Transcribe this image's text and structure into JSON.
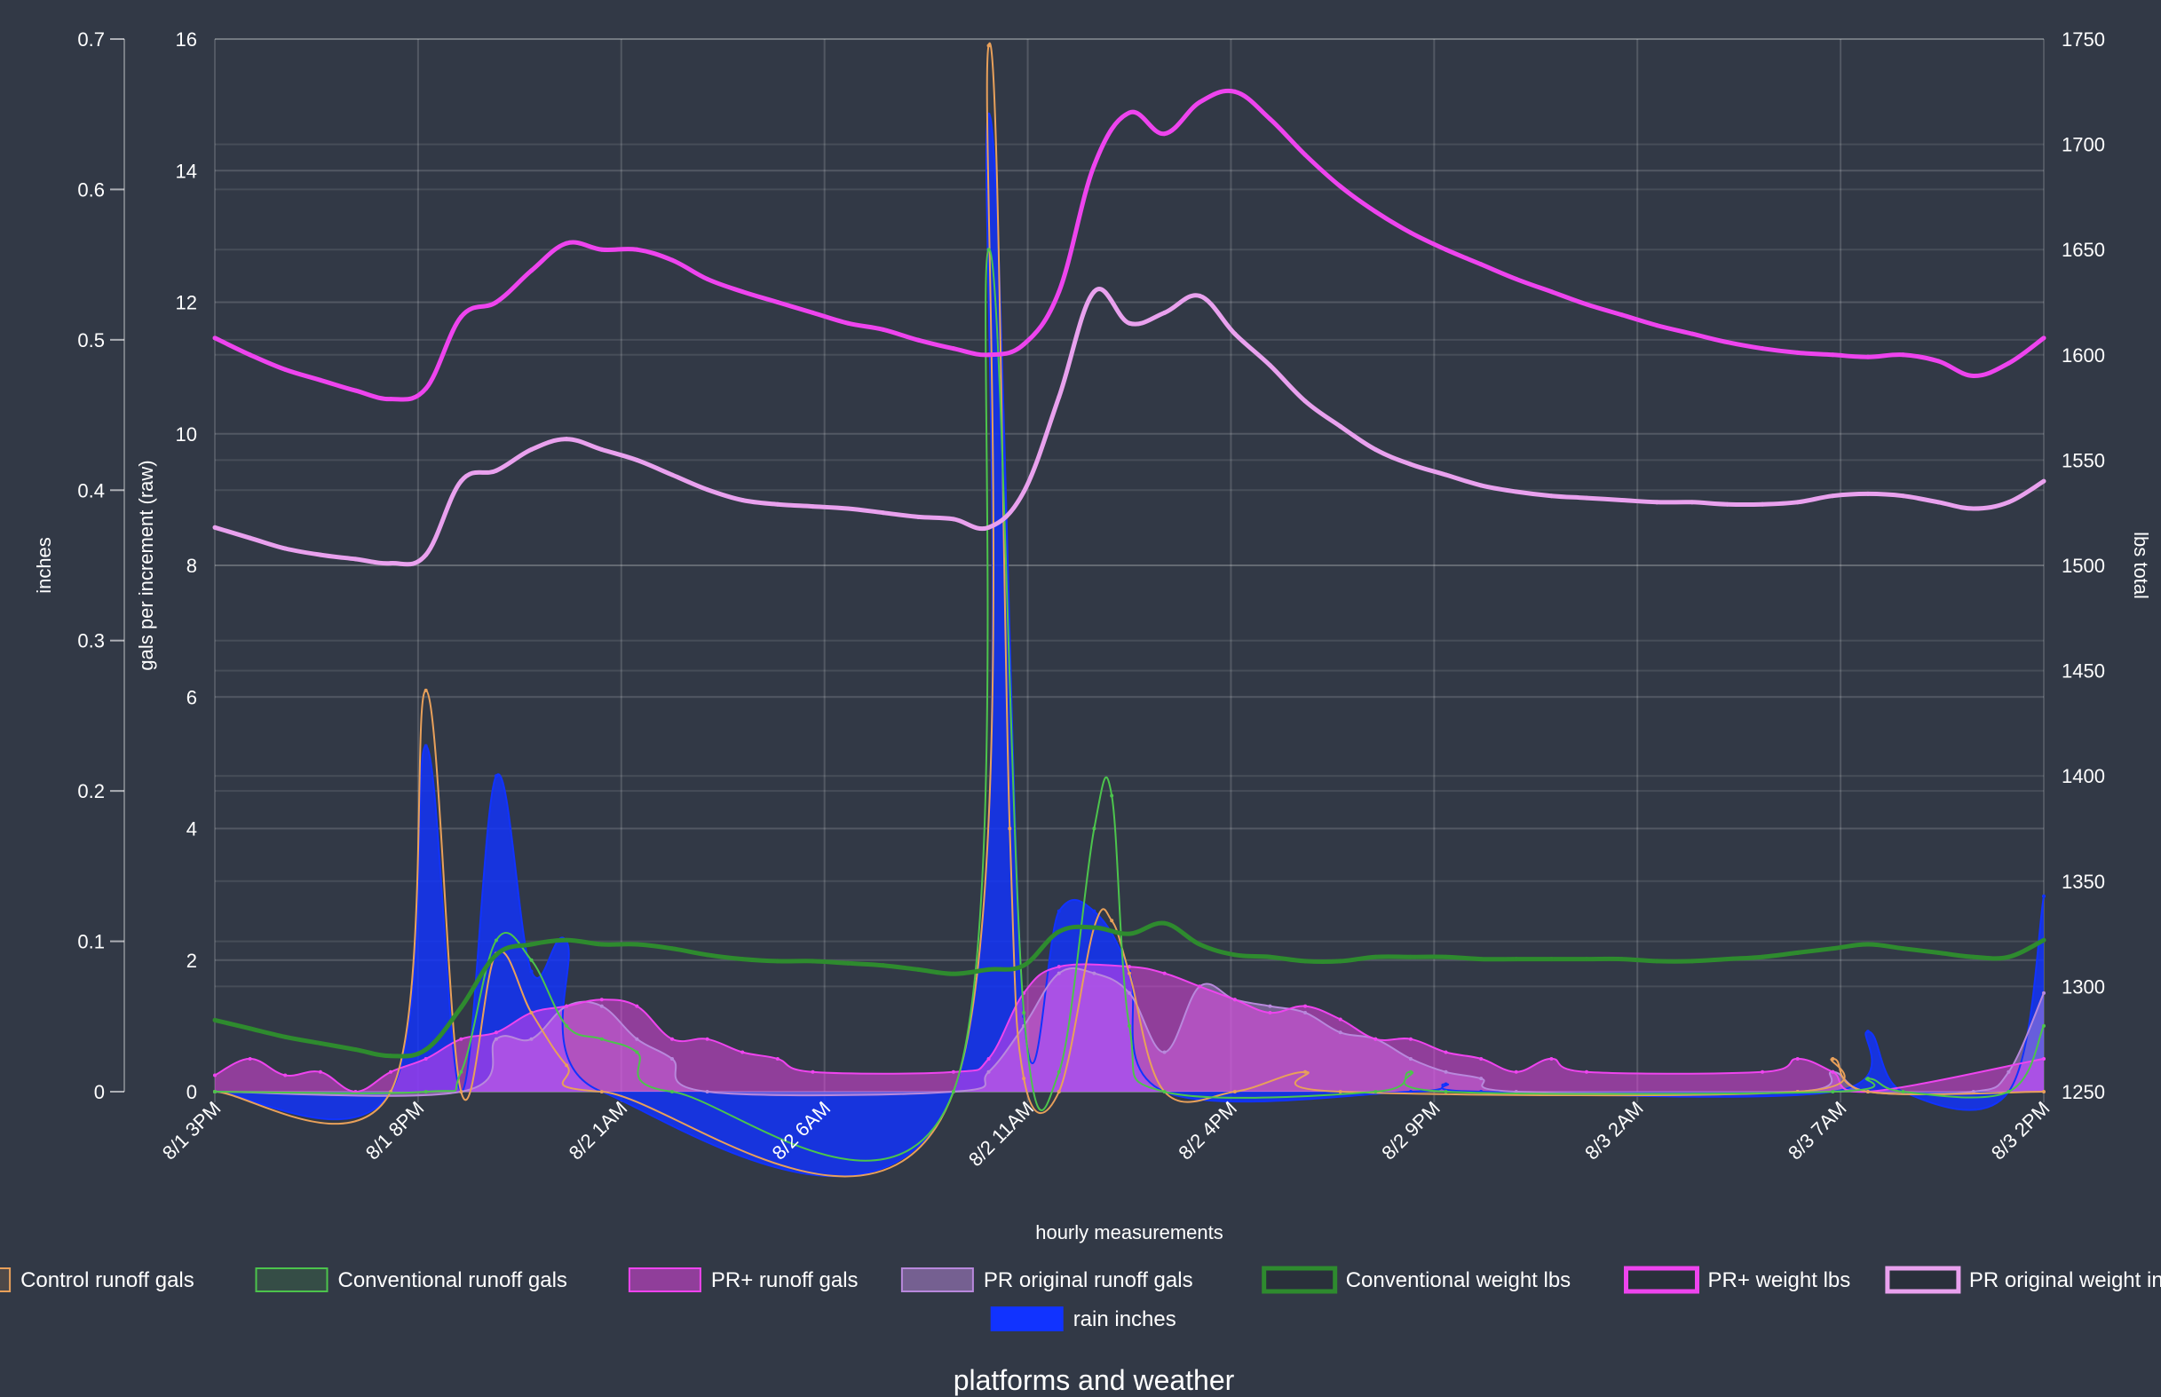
{
  "chart_data": {
    "type": "line",
    "title": "platforms and weather",
    "xlabel": "hourly measurements",
    "x_tick_labels": [
      "8/1 3PM",
      "8/1 8PM",
      "8/2 1AM",
      "8/2 6AM",
      "8/2 11AM",
      "8/2 4PM",
      "8/2 9PM",
      "8/3 2AM",
      "8/3 7AM",
      "8/3 2PM"
    ],
    "axes": {
      "inches": {
        "label": "inches",
        "ticks": [
          "0",
          "0.1",
          "0.2",
          "0.3",
          "0.4",
          "0.5",
          "0.6",
          "0.7"
        ],
        "range": [
          0,
          0.7
        ]
      },
      "gals": {
        "label": "gals per increment (raw)",
        "ticks": [
          "0",
          "2",
          "4",
          "6",
          "8",
          "10",
          "12",
          "14",
          "16"
        ],
        "range": [
          0,
          16
        ]
      },
      "lbs": {
        "label": "lbs total",
        "ticks": [
          "1250",
          "1300",
          "1350",
          "1400",
          "1450",
          "1500",
          "1550",
          "1600",
          "1650",
          "1700",
          "1750"
        ],
        "range": [
          1250,
          1750
        ]
      }
    },
    "grid": true,
    "legend_position": "bottom",
    "series": [
      {
        "name": "Control runoff gals",
        "axis": "gals",
        "fill": false,
        "color": "#e8a05a",
        "points": [
          [
            0,
            0
          ],
          [
            5,
            0
          ],
          [
            6,
            6.1
          ],
          [
            7,
            0
          ],
          [
            8,
            2.1
          ],
          [
            9,
            1.2
          ],
          [
            10,
            0.4
          ],
          [
            11,
            0
          ],
          [
            21,
            0
          ],
          [
            22,
            15.9
          ],
          [
            22.6,
            4
          ],
          [
            23,
            0.2
          ],
          [
            24,
            0
          ],
          [
            25,
            2.5
          ],
          [
            25.5,
            2.6
          ],
          [
            26,
            1.8
          ],
          [
            27,
            0
          ],
          [
            29,
            0
          ],
          [
            31,
            0.3
          ],
          [
            32,
            0
          ],
          [
            45,
            0
          ],
          [
            46,
            0.5
          ],
          [
            47,
            0
          ],
          [
            52,
            0
          ]
        ]
      },
      {
        "name": "Conventional runoff gals",
        "axis": "gals",
        "fill": false,
        "color": "#4cc44c",
        "points": [
          [
            0,
            0
          ],
          [
            6,
            0
          ],
          [
            7,
            0.3
          ],
          [
            8,
            2.3
          ],
          [
            9,
            2
          ],
          [
            10,
            1
          ],
          [
            11,
            0.8
          ],
          [
            12,
            0.6
          ],
          [
            13,
            0
          ],
          [
            21,
            0
          ],
          [
            22,
            12.8
          ],
          [
            23,
            1.2
          ],
          [
            24,
            0.3
          ],
          [
            25,
            4
          ],
          [
            25.5,
            4.5
          ],
          [
            26,
            1
          ],
          [
            27,
            0
          ],
          [
            33,
            0
          ],
          [
            34,
            0.3
          ],
          [
            35,
            0
          ],
          [
            46,
            0
          ],
          [
            47,
            0.2
          ],
          [
            48,
            0
          ],
          [
            51,
            0
          ],
          [
            52,
            1
          ]
        ]
      },
      {
        "name": "PR+ runoff gals",
        "axis": "gals",
        "fill": true,
        "color": "#ee44ee",
        "points": [
          [
            0,
            0.25
          ],
          [
            1,
            0.5
          ],
          [
            2,
            0.25
          ],
          [
            3,
            0.3
          ],
          [
            4,
            0
          ],
          [
            5,
            0.3
          ],
          [
            6,
            0.5
          ],
          [
            7,
            0.8
          ],
          [
            8,
            0.9
          ],
          [
            9,
            1.2
          ],
          [
            10,
            1.3
          ],
          [
            11,
            1.4
          ],
          [
            12,
            1.3
          ],
          [
            13,
            0.8
          ],
          [
            14,
            0.8
          ],
          [
            15,
            0.6
          ],
          [
            16,
            0.5
          ],
          [
            17,
            0.3
          ],
          [
            21,
            0.3
          ],
          [
            22,
            0.5
          ],
          [
            23,
            1.5
          ],
          [
            24,
            1.9
          ],
          [
            26,
            1.9
          ],
          [
            27,
            1.8
          ],
          [
            28,
            1.6
          ],
          [
            29,
            1.4
          ],
          [
            30,
            1.2
          ],
          [
            31,
            1.3
          ],
          [
            32,
            1.1
          ],
          [
            33,
            0.8
          ],
          [
            34,
            0.8
          ],
          [
            35,
            0.6
          ],
          [
            36,
            0.5
          ],
          [
            37,
            0.3
          ],
          [
            38,
            0.5
          ],
          [
            39,
            0.3
          ],
          [
            44,
            0.3
          ],
          [
            45,
            0.5
          ],
          [
            46,
            0.3
          ],
          [
            47,
            0
          ],
          [
            52,
            0.5
          ]
        ]
      },
      {
        "name": "PR original runoff gals",
        "axis": "gals",
        "fill": true,
        "color": "#b888dc",
        "points": [
          [
            0,
            0
          ],
          [
            7,
            0
          ],
          [
            8,
            0.8
          ],
          [
            9,
            0.8
          ],
          [
            10,
            1.3
          ],
          [
            11,
            1.3
          ],
          [
            12,
            0.8
          ],
          [
            13,
            0.5
          ],
          [
            14,
            0
          ],
          [
            21,
            0
          ],
          [
            22,
            0.3
          ],
          [
            23,
            1
          ],
          [
            24,
            1.8
          ],
          [
            25,
            1.8
          ],
          [
            26,
            1.5
          ],
          [
            27,
            0.6
          ],
          [
            28,
            1.6
          ],
          [
            29,
            1.4
          ],
          [
            30,
            1.3
          ],
          [
            31,
            1.2
          ],
          [
            32,
            0.9
          ],
          [
            33,
            0.8
          ],
          [
            34,
            0.5
          ],
          [
            35,
            0.3
          ],
          [
            36,
            0.2
          ],
          [
            37,
            0
          ],
          [
            45,
            0
          ],
          [
            46,
            0.3
          ],
          [
            47,
            0
          ],
          [
            50,
            0
          ],
          [
            51,
            0.3
          ],
          [
            52,
            1.5
          ]
        ]
      },
      {
        "name": "Conventional weight lbs",
        "axis": "lbs",
        "fill": false,
        "color": "#2e8b2e",
        "points": [
          [
            0,
            1284
          ],
          [
            1,
            1280
          ],
          [
            2,
            1276
          ],
          [
            3,
            1273
          ],
          [
            4,
            1270
          ],
          [
            5,
            1267
          ],
          [
            6,
            1270
          ],
          [
            7,
            1290
          ],
          [
            8,
            1315
          ],
          [
            9,
            1320
          ],
          [
            10,
            1322
          ],
          [
            11,
            1320
          ],
          [
            12,
            1320
          ],
          [
            13,
            1318
          ],
          [
            14,
            1315
          ],
          [
            15,
            1313
          ],
          [
            16,
            1312
          ],
          [
            17,
            1312
          ],
          [
            18,
            1311
          ],
          [
            19,
            1310
          ],
          [
            20,
            1308
          ],
          [
            21,
            1306
          ],
          [
            22,
            1308
          ],
          [
            23,
            1310
          ],
          [
            24,
            1326
          ],
          [
            25,
            1328
          ],
          [
            26,
            1325
          ],
          [
            27,
            1330
          ],
          [
            28,
            1320
          ],
          [
            29,
            1315
          ],
          [
            30,
            1314
          ],
          [
            31,
            1312
          ],
          [
            32,
            1312
          ],
          [
            33,
            1314
          ],
          [
            34,
            1314
          ],
          [
            35,
            1314
          ],
          [
            36,
            1313
          ],
          [
            37,
            1313
          ],
          [
            38,
            1313
          ],
          [
            39,
            1313
          ],
          [
            40,
            1313
          ],
          [
            41,
            1312
          ],
          [
            42,
            1312
          ],
          [
            43,
            1313
          ],
          [
            44,
            1314
          ],
          [
            45,
            1316
          ],
          [
            46,
            1318
          ],
          [
            47,
            1320
          ],
          [
            48,
            1318
          ],
          [
            49,
            1316
          ],
          [
            50,
            1314
          ],
          [
            51,
            1314
          ],
          [
            52,
            1322
          ]
        ]
      },
      {
        "name": "PR+ weight lbs",
        "axis": "lbs",
        "fill": false,
        "color": "#ee44ee",
        "points": [
          [
            0,
            1608
          ],
          [
            1,
            1600
          ],
          [
            2,
            1593
          ],
          [
            3,
            1588
          ],
          [
            4,
            1583
          ],
          [
            5,
            1579
          ],
          [
            6,
            1584
          ],
          [
            7,
            1618
          ],
          [
            8,
            1625
          ],
          [
            9,
            1640
          ],
          [
            10,
            1653
          ],
          [
            11,
            1650
          ],
          [
            12,
            1650
          ],
          [
            13,
            1645
          ],
          [
            14,
            1636
          ],
          [
            15,
            1630
          ],
          [
            16,
            1625
          ],
          [
            17,
            1620
          ],
          [
            18,
            1615
          ],
          [
            19,
            1612
          ],
          [
            20,
            1607
          ],
          [
            21,
            1603
          ],
          [
            22,
            1600
          ],
          [
            23,
            1605
          ],
          [
            24,
            1630
          ],
          [
            25,
            1690
          ],
          [
            26,
            1715
          ],
          [
            27,
            1705
          ],
          [
            28,
            1720
          ],
          [
            29,
            1725
          ],
          [
            30,
            1712
          ],
          [
            31,
            1695
          ],
          [
            32,
            1680
          ],
          [
            33,
            1668
          ],
          [
            34,
            1658
          ],
          [
            35,
            1650
          ],
          [
            36,
            1643
          ],
          [
            37,
            1636
          ],
          [
            38,
            1630
          ],
          [
            39,
            1624
          ],
          [
            40,
            1619
          ],
          [
            41,
            1614
          ],
          [
            42,
            1610
          ],
          [
            43,
            1606
          ],
          [
            44,
            1603
          ],
          [
            45,
            1601
          ],
          [
            46,
            1600
          ],
          [
            47,
            1599
          ],
          [
            48,
            1600
          ],
          [
            49,
            1597
          ],
          [
            50,
            1590
          ],
          [
            51,
            1596
          ],
          [
            52,
            1608
          ]
        ]
      },
      {
        "name": "PR original weight in lbs",
        "axis": "lbs",
        "fill": false,
        "color": "#e9a1ee",
        "points": [
          [
            0,
            1518
          ],
          [
            1,
            1513
          ],
          [
            2,
            1508
          ],
          [
            3,
            1505
          ],
          [
            4,
            1503
          ],
          [
            5,
            1501
          ],
          [
            6,
            1505
          ],
          [
            7,
            1540
          ],
          [
            8,
            1545
          ],
          [
            9,
            1555
          ],
          [
            10,
            1560
          ],
          [
            11,
            1555
          ],
          [
            12,
            1550
          ],
          [
            13,
            1543
          ],
          [
            14,
            1536
          ],
          [
            15,
            1531
          ],
          [
            16,
            1529
          ],
          [
            17,
            1528
          ],
          [
            18,
            1527
          ],
          [
            19,
            1525
          ],
          [
            20,
            1523
          ],
          [
            21,
            1522
          ],
          [
            22,
            1518
          ],
          [
            23,
            1535
          ],
          [
            24,
            1580
          ],
          [
            25,
            1630
          ],
          [
            26,
            1615
          ],
          [
            27,
            1620
          ],
          [
            28,
            1628
          ],
          [
            29,
            1610
          ],
          [
            30,
            1595
          ],
          [
            31,
            1578
          ],
          [
            32,
            1566
          ],
          [
            33,
            1555
          ],
          [
            34,
            1548
          ],
          [
            35,
            1543
          ],
          [
            36,
            1538
          ],
          [
            37,
            1535
          ],
          [
            38,
            1533
          ],
          [
            39,
            1532
          ],
          [
            40,
            1531
          ],
          [
            41,
            1530
          ],
          [
            42,
            1530
          ],
          [
            43,
            1529
          ],
          [
            44,
            1529
          ],
          [
            45,
            1530
          ],
          [
            46,
            1533
          ],
          [
            47,
            1534
          ],
          [
            48,
            1533
          ],
          [
            49,
            1530
          ],
          [
            50,
            1527
          ],
          [
            51,
            1530
          ],
          [
            52,
            1540
          ]
        ]
      },
      {
        "name": "rain inches",
        "axis": "inches",
        "fill": true,
        "color": "#1133ff",
        "points": [
          [
            0,
            0
          ],
          [
            5,
            0
          ],
          [
            6,
            0.23
          ],
          [
            7,
            0
          ],
          [
            8,
            0.21
          ],
          [
            9,
            0.08
          ],
          [
            10,
            0.1
          ],
          [
            11,
            0
          ],
          [
            21,
            0
          ],
          [
            22,
            0.65
          ],
          [
            23,
            0.05
          ],
          [
            24,
            0.12
          ],
          [
            25,
            0.12
          ],
          [
            26,
            0.08
          ],
          [
            27,
            0
          ],
          [
            34,
            0
          ],
          [
            35,
            0.005
          ],
          [
            36,
            0
          ],
          [
            46,
            0
          ],
          [
            47,
            0.04
          ],
          [
            48,
            0
          ],
          [
            51,
            0
          ],
          [
            52,
            0.13
          ]
        ]
      }
    ]
  }
}
